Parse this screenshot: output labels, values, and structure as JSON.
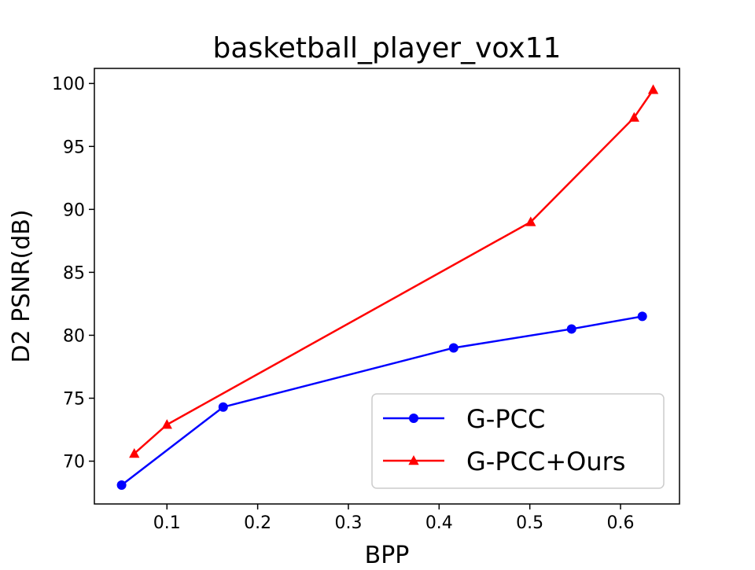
{
  "chart_data": {
    "type": "line",
    "title": "basketball_player_vox11",
    "xlabel": "BPP",
    "ylabel": "D2 PSNR(dB)",
    "xlim": [
      0.02,
      0.665
    ],
    "ylim": [
      66.6,
      101.2
    ],
    "xticks": [
      "0.1",
      "0.2",
      "0.3",
      "0.4",
      "0.5",
      "0.6"
    ],
    "yticks": [
      "70",
      "75",
      "80",
      "85",
      "90",
      "95",
      "100"
    ],
    "grid": false,
    "legend_position": "lower right",
    "series": [
      {
        "name": "G-PCC",
        "color": "#0000ff",
        "marker": "circle",
        "x": [
          0.05,
          0.162,
          0.416,
          0.546,
          0.624
        ],
        "y": [
          68.1,
          74.3,
          79.0,
          80.5,
          81.5
        ]
      },
      {
        "name": "G-PCC+Ours",
        "color": "#ff0000",
        "marker": "triangle",
        "x": [
          0.064,
          0.1,
          0.501,
          0.615,
          0.636
        ],
        "y": [
          70.6,
          72.9,
          89.0,
          97.3,
          99.5
        ]
      }
    ]
  }
}
